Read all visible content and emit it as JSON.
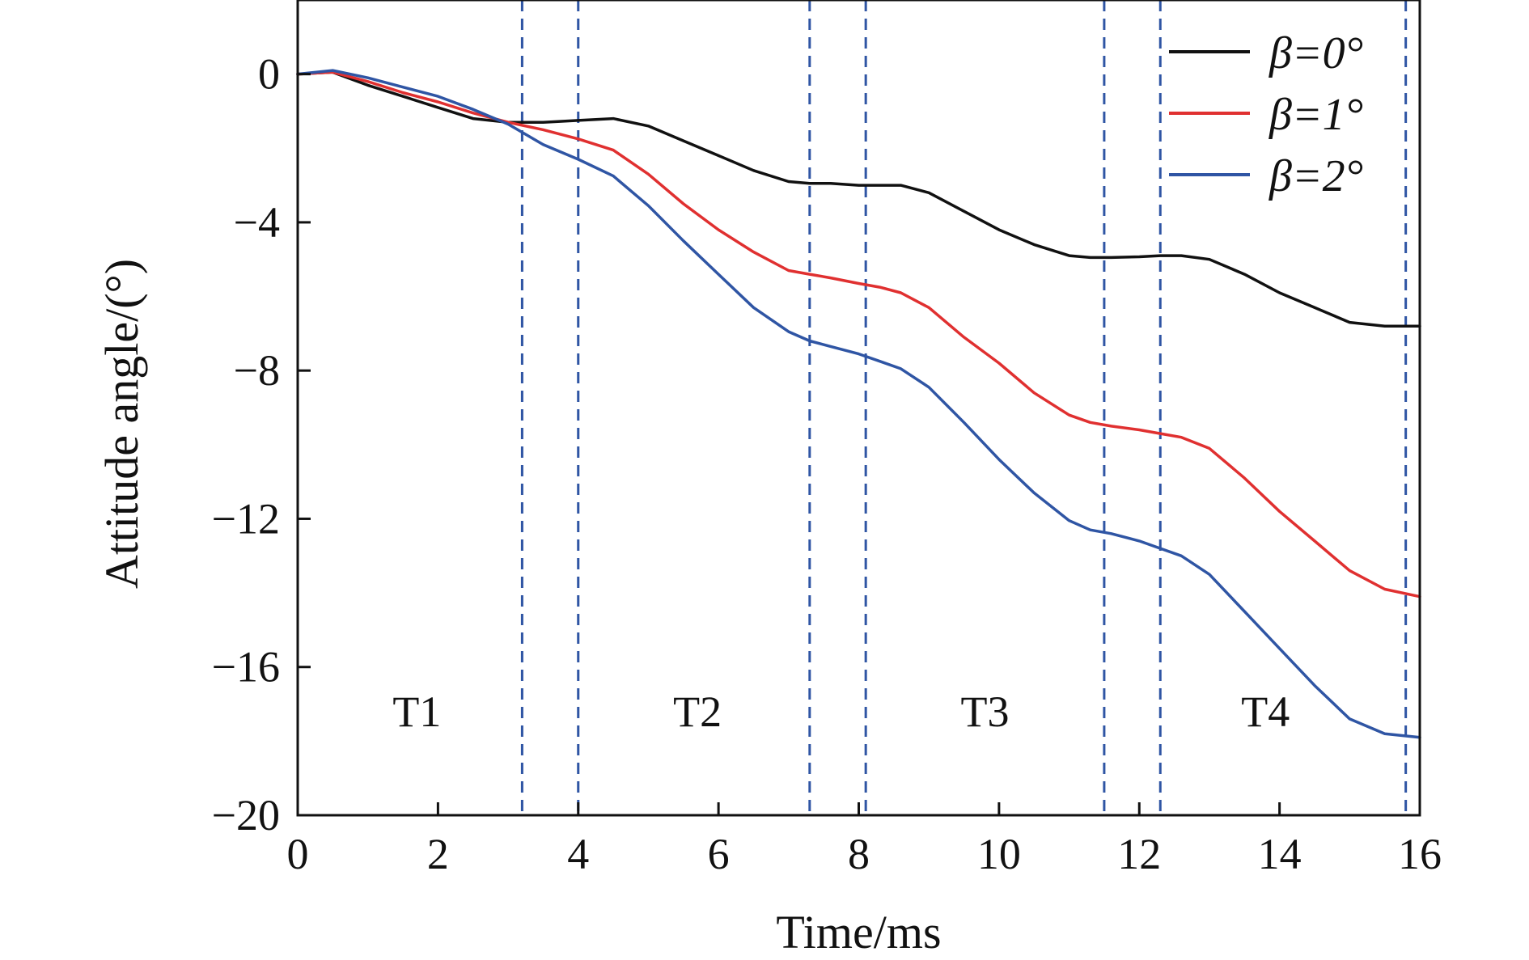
{
  "chart_data": {
    "type": "line",
    "xlabel": "Time/ms",
    "ylabel": "Attitude angle/(°)",
    "xlim": [
      0,
      16
    ],
    "ylim": [
      -20,
      2
    ],
    "xticks": [
      0,
      2,
      4,
      6,
      8,
      10,
      12,
      14,
      16
    ],
    "xtick_labels": [
      "0",
      "2",
      "4",
      "6",
      "8",
      "10",
      "12",
      "14",
      "16"
    ],
    "yticks": [
      0,
      -4,
      -8,
      -12,
      -16,
      -20
    ],
    "ytick_labels": [
      "0",
      "−4",
      "−8",
      "−12",
      "−16",
      "−20"
    ],
    "grid": false,
    "legend_position": "top-right",
    "series": [
      {
        "name": "β=0°",
        "color": "#111111",
        "x": [
          0,
          0.5,
          1,
          1.5,
          2,
          2.5,
          3,
          3.5,
          4,
          4.5,
          5,
          5.5,
          6,
          6.5,
          7,
          7.3,
          7.6,
          8,
          8.3,
          8.6,
          9,
          9.5,
          10,
          10.5,
          11,
          11.3,
          11.6,
          12,
          12.3,
          12.6,
          13,
          13.5,
          14,
          14.5,
          15,
          15.5,
          16
        ],
        "y": [
          0,
          0.05,
          -0.3,
          -0.6,
          -0.9,
          -1.2,
          -1.3,
          -1.3,
          -1.25,
          -1.2,
          -1.4,
          -1.8,
          -2.2,
          -2.6,
          -2.9,
          -2.95,
          -2.95,
          -3.0,
          -3.0,
          -3.0,
          -3.2,
          -3.7,
          -4.2,
          -4.6,
          -4.9,
          -4.95,
          -4.95,
          -4.93,
          -4.9,
          -4.9,
          -5.0,
          -5.4,
          -5.9,
          -6.3,
          -6.7,
          -6.8,
          -6.8
        ]
      },
      {
        "name": "β=1°",
        "color": "#e03030",
        "x": [
          0,
          0.5,
          1,
          1.5,
          2,
          2.5,
          3,
          3.5,
          4,
          4.5,
          5,
          5.5,
          6,
          6.5,
          7,
          7.3,
          7.6,
          8,
          8.3,
          8.6,
          9,
          9.5,
          10,
          10.5,
          11,
          11.3,
          11.6,
          12,
          12.3,
          12.6,
          13,
          13.5,
          14,
          14.5,
          15,
          15.5,
          16
        ],
        "y": [
          0,
          0.05,
          -0.2,
          -0.5,
          -0.75,
          -1.05,
          -1.3,
          -1.5,
          -1.75,
          -2.05,
          -2.7,
          -3.5,
          -4.2,
          -4.8,
          -5.3,
          -5.4,
          -5.5,
          -5.65,
          -5.75,
          -5.9,
          -6.3,
          -7.1,
          -7.8,
          -8.6,
          -9.2,
          -9.4,
          -9.5,
          -9.6,
          -9.7,
          -9.8,
          -10.1,
          -10.9,
          -11.8,
          -12.6,
          -13.4,
          -13.9,
          -14.1
        ]
      },
      {
        "name": "β=2°",
        "color": "#2f55a4",
        "x": [
          0,
          0.5,
          1,
          1.5,
          2,
          2.5,
          3,
          3.5,
          4,
          4.5,
          5,
          5.5,
          6,
          6.5,
          7,
          7.3,
          7.6,
          8,
          8.3,
          8.6,
          9,
          9.5,
          10,
          10.5,
          11,
          11.3,
          11.6,
          12,
          12.3,
          12.6,
          13,
          13.5,
          14,
          14.5,
          15,
          15.5,
          16
        ],
        "y": [
          0,
          0.1,
          -0.1,
          -0.35,
          -0.6,
          -0.95,
          -1.35,
          -1.9,
          -2.3,
          -2.75,
          -3.55,
          -4.5,
          -5.4,
          -6.3,
          -6.95,
          -7.2,
          -7.35,
          -7.55,
          -7.75,
          -7.95,
          -8.45,
          -9.4,
          -10.4,
          -11.3,
          -12.05,
          -12.3,
          -12.4,
          -12.6,
          -12.8,
          -13.0,
          -13.5,
          -14.5,
          -15.5,
          -16.5,
          -17.4,
          -17.8,
          -17.9
        ]
      }
    ],
    "vertical_lines": {
      "color": "#2f55a4",
      "x": [
        3.2,
        4.0,
        7.3,
        8.1,
        11.5,
        12.3,
        15.8
      ]
    },
    "regions": [
      {
        "label": "T1",
        "x": 1.7,
        "y": -17.6
      },
      {
        "label": "T2",
        "x": 5.7,
        "y": -17.6
      },
      {
        "label": "T3",
        "x": 9.8,
        "y": -17.6
      },
      {
        "label": "T4",
        "x": 13.8,
        "y": -17.6
      }
    ]
  }
}
